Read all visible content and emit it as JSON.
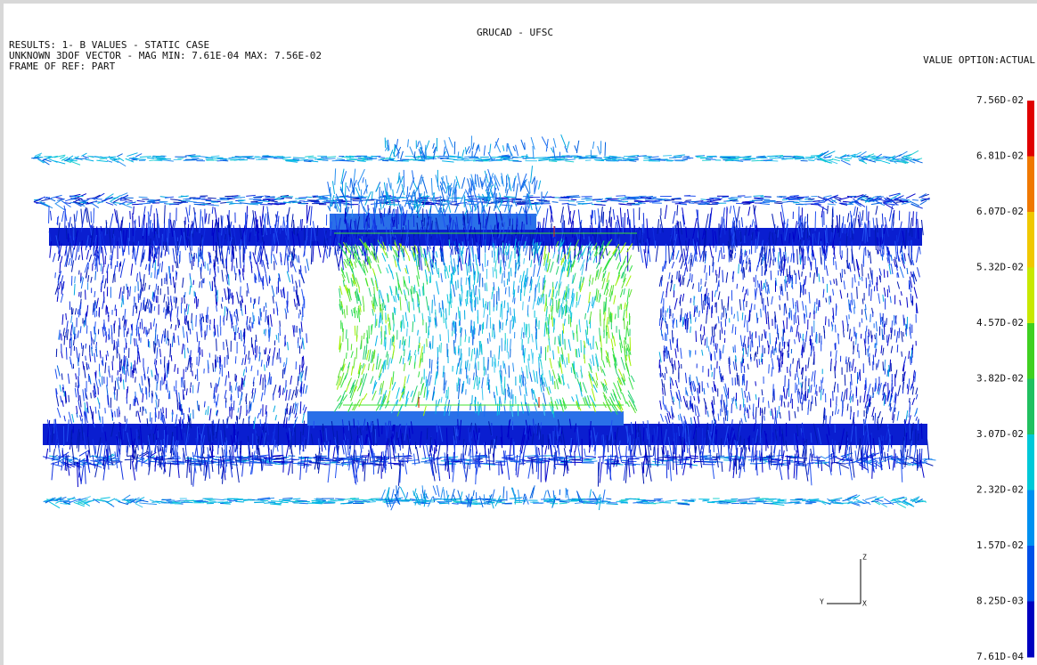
{
  "header": {
    "title": "GRUCAD - UFSC",
    "lines": [
      "RESULTS: 1- B VALUES - STATIC CASE",
      "UNKNOWN 3DOF VECTOR - MAG MIN: 7.61E-04 MAX: 7.56E-02",
      "FRAME OF REF: PART"
    ],
    "value_option": "VALUE OPTION:ACTUAL"
  },
  "legend": {
    "labels": [
      "7.56D-02",
      "6.81D-02",
      "6.07D-02",
      "5.32D-02",
      "4.57D-02",
      "3.82D-02",
      "3.07D-02",
      "2.32D-02",
      "1.57D-02",
      "8.25D-03",
      "7.61D-04"
    ]
  },
  "triad": {
    "z": "Z",
    "y": "Y",
    "x": "X"
  }
}
